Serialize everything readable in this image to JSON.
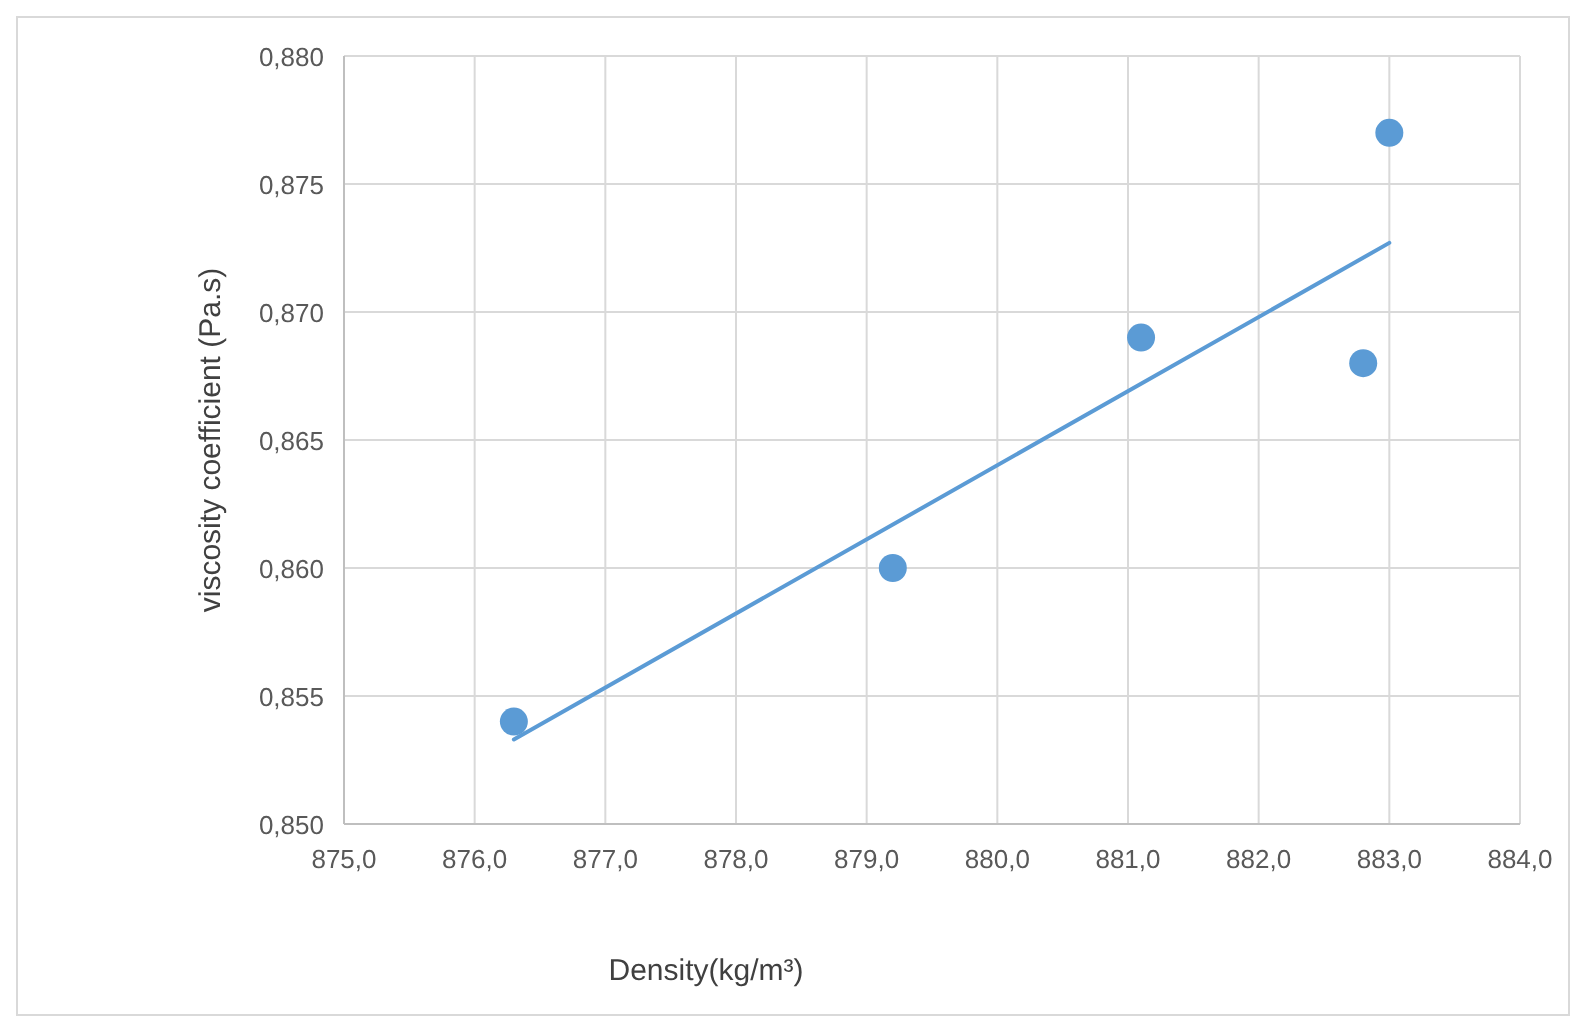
{
  "chart_data": {
    "type": "scatter",
    "xlabel": "Density(kg/m³)",
    "ylabel": "viscosity coefficient (Pa.s)",
    "xlim": [
      875,
      884
    ],
    "xticks": [
      {
        "value": 875,
        "label": "875,0"
      },
      {
        "value": 876,
        "label": "876,0"
      },
      {
        "value": 877,
        "label": "877,0"
      },
      {
        "value": 878,
        "label": "878,0"
      },
      {
        "value": 879,
        "label": "879,0"
      },
      {
        "value": 880,
        "label": "880,0"
      },
      {
        "value": 881,
        "label": "881,0"
      },
      {
        "value": 882,
        "label": "882,0"
      },
      {
        "value": 883,
        "label": "883,0"
      },
      {
        "value": 884,
        "label": "884,0"
      }
    ],
    "ylim": [
      0.85,
      0.88
    ],
    "yticks": [
      {
        "value": 0.85,
        "label": "0,850"
      },
      {
        "value": 0.855,
        "label": "0,855"
      },
      {
        "value": 0.86,
        "label": "0,860"
      },
      {
        "value": 0.865,
        "label": "0,865"
      },
      {
        "value": 0.87,
        "label": "0,870"
      },
      {
        "value": 0.875,
        "label": "0,875"
      },
      {
        "value": 0.88,
        "label": "0,880"
      }
    ],
    "grid": true,
    "series": [
      {
        "marker": "circle",
        "color": "#5b9bd5",
        "x": [
          876.3,
          879.2,
          881.1,
          882.8,
          883.0
        ],
        "values": [
          0.854,
          0.86,
          0.869,
          0.868,
          0.877
        ]
      },
      {
        "type": "line",
        "color": "#5b9bd5",
        "x": [
          876.3,
          883.0
        ],
        "values": [
          0.8533,
          0.8727
        ]
      }
    ]
  }
}
